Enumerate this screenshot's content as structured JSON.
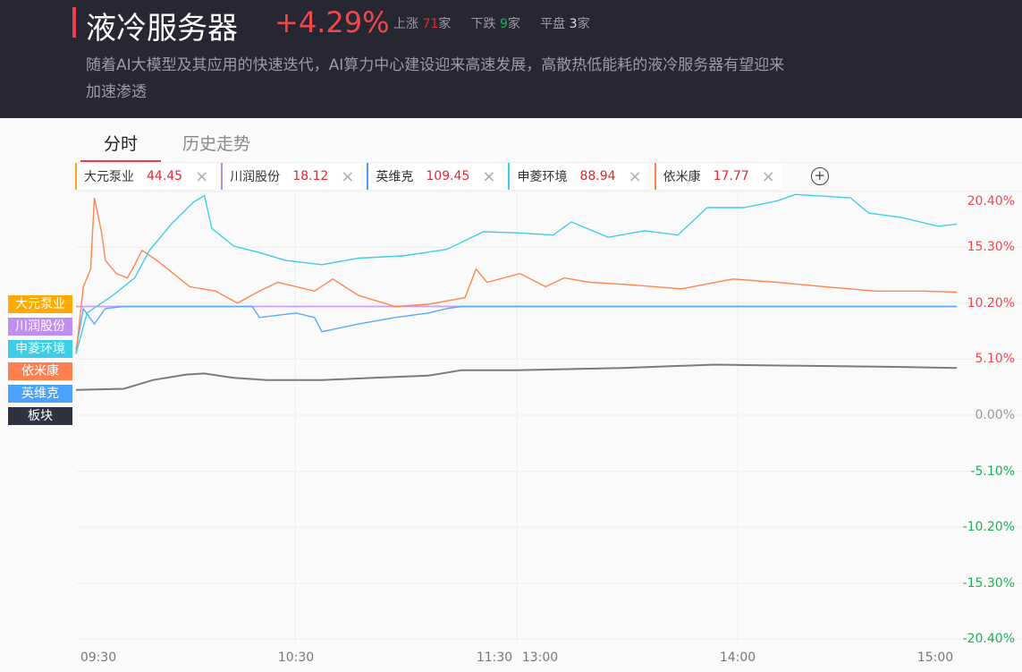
{
  "header": {
    "title": "液冷服务器",
    "change": "+4.29%",
    "up_label": "上涨",
    "up_count": "71",
    "down_label": "下跌",
    "down_count": "9",
    "flat_label": "平盘",
    "flat_count": "3",
    "unit": "家",
    "description": "随着AI大模型及其应用的快速迭代，AI算力中心建设迎来高速发展，高散热低能耗的液冷服务器有望迎来加速渗透"
  },
  "tabs": [
    {
      "label": "分时",
      "active": true
    },
    {
      "label": "历史走势",
      "active": false
    }
  ],
  "chips": [
    {
      "name": "大元泵业",
      "price": "44.45",
      "color": "#f5a623"
    },
    {
      "name": "川润股份",
      "price": "18.12",
      "color": "#b98ee6"
    },
    {
      "name": "英维克",
      "price": "109.45",
      "color": "#4b9cf5"
    },
    {
      "name": "申菱环境",
      "price": "88.94",
      "color": "#3dcde6"
    },
    {
      "name": "依米康",
      "price": "17.77",
      "color": "#ff7f4e"
    }
  ],
  "add_icon": "plus-circle-icon",
  "close_icon": "×",
  "plus_glyph": "+",
  "legend_labels": [
    {
      "label": "大元泵业",
      "color": "#ffaa00"
    },
    {
      "label": "川润股份",
      "color": "#c08ef0"
    },
    {
      "label": "申菱环境",
      "color": "#3dcde6"
    },
    {
      "label": "依米康",
      "color": "#ff7f4e"
    },
    {
      "label": "英维克",
      "color": "#4ba3ff"
    },
    {
      "label": "板块",
      "color": "#2f3340"
    }
  ],
  "chart_data": {
    "type": "line",
    "ylim": [
      -20.4,
      20.4
    ],
    "yticks": [
      "20.40%",
      "15.30%",
      "10.20%",
      "5.10%",
      "0.00%",
      "-5.10%",
      "-10.20%",
      "-15.30%",
      "-20.40%"
    ],
    "ytick_values": [
      20.4,
      15.3,
      10.2,
      5.1,
      0,
      -5.1,
      -10.2,
      -15.3,
      -20.4
    ],
    "xticks": [
      "09:30",
      "10:30",
      "11:30",
      "13:00",
      "14:00",
      "15:00"
    ],
    "grid": true,
    "series": [
      {
        "name": "大元泵业",
        "color": "#f5a623",
        "points": [
          [
            "09:30",
            9.9
          ],
          [
            "15:00",
            9.9
          ]
        ]
      },
      {
        "name": "川润股份",
        "color": "#c9a0f0",
        "points": [
          [
            "09:30",
            9.9
          ],
          [
            "15:00",
            9.9
          ]
        ]
      },
      {
        "name": "板块",
        "color": "#7a7a84",
        "points": [
          [
            "09:30",
            2.3
          ],
          [
            "09:43",
            2.4
          ],
          [
            "09:51",
            3.2
          ],
          [
            "10:00",
            3.7
          ],
          [
            "10:05",
            3.8
          ],
          [
            "10:13",
            3.4
          ],
          [
            "10:22",
            3.2
          ],
          [
            "10:37",
            3.2
          ],
          [
            "10:51",
            3.4
          ],
          [
            "11:06",
            3.6
          ],
          [
            "11:15",
            4.1
          ],
          [
            "13:00",
            4.1
          ],
          [
            "13:29",
            4.3
          ],
          [
            "13:54",
            4.6
          ],
          [
            "14:18",
            4.5
          ],
          [
            "14:43",
            4.4
          ],
          [
            "15:00",
            4.3
          ]
        ]
      },
      {
        "name": "英维克",
        "color": "#5aa8f8",
        "points": [
          [
            "09:30",
            6.0
          ],
          [
            "09:32",
            9.7
          ],
          [
            "09:35",
            8.3
          ],
          [
            "09:38",
            9.7
          ],
          [
            "09:43",
            9.9
          ],
          [
            "10:18",
            9.9
          ],
          [
            "10:20",
            8.9
          ],
          [
            "10:30",
            9.3
          ],
          [
            "10:35",
            8.9
          ],
          [
            "10:37",
            7.6
          ],
          [
            "10:47",
            8.3
          ],
          [
            "10:57",
            8.9
          ],
          [
            "11:06",
            9.3
          ],
          [
            "11:11",
            9.7
          ],
          [
            "11:15",
            9.9
          ],
          [
            "15:00",
            9.9
          ]
        ]
      },
      {
        "name": "依米康",
        "color": "#ff8550",
        "points": [
          [
            "09:30",
            5.6
          ],
          [
            "09:32",
            11.7
          ],
          [
            "09:34",
            13.3
          ],
          [
            "09:35",
            19.8
          ],
          [
            "09:37",
            16.6
          ],
          [
            "09:38",
            14.1
          ],
          [
            "09:41",
            12.9
          ],
          [
            "09:44",
            12.5
          ],
          [
            "09:46",
            13.7
          ],
          [
            "09:48",
            15.0
          ],
          [
            "09:52",
            14.1
          ],
          [
            "09:55",
            13.3
          ],
          [
            "10:01",
            11.7
          ],
          [
            "10:08",
            11.3
          ],
          [
            "10:14",
            10.2
          ],
          [
            "10:20",
            11.3
          ],
          [
            "10:25",
            12.1
          ],
          [
            "10:35",
            11.3
          ],
          [
            "10:40",
            12.4
          ],
          [
            "10:47",
            10.9
          ],
          [
            "10:57",
            9.9
          ],
          [
            "11:06",
            10.1
          ],
          [
            "11:16",
            10.7
          ],
          [
            "11:19",
            13.3
          ],
          [
            "11:22",
            12.1
          ],
          [
            "13:01",
            12.9
          ],
          [
            "13:08",
            11.7
          ],
          [
            "13:13",
            12.5
          ],
          [
            "13:20",
            12.1
          ],
          [
            "13:30",
            11.9
          ],
          [
            "13:45",
            11.5
          ],
          [
            "13:59",
            12.4
          ],
          [
            "14:11",
            12.1
          ],
          [
            "14:24",
            11.7
          ],
          [
            "14:38",
            11.3
          ],
          [
            "14:51",
            11.3
          ],
          [
            "15:00",
            11.2
          ]
        ]
      },
      {
        "name": "申菱环境",
        "color": "#42cde8",
        "points": [
          [
            "09:30",
            5.6
          ],
          [
            "09:33",
            9.3
          ],
          [
            "09:40",
            10.9
          ],
          [
            "09:46",
            12.5
          ],
          [
            "09:50",
            15.0
          ],
          [
            "09:56",
            17.4
          ],
          [
            "10:02",
            19.4
          ],
          [
            "10:05",
            20.0
          ],
          [
            "10:07",
            17.0
          ],
          [
            "10:13",
            15.4
          ],
          [
            "10:20",
            14.8
          ],
          [
            "10:27",
            14.1
          ],
          [
            "10:37",
            13.7
          ],
          [
            "10:47",
            14.3
          ],
          [
            "10:59",
            14.5
          ],
          [
            "11:11",
            15.1
          ],
          [
            "11:21",
            16.7
          ],
          [
            "13:00",
            16.6
          ],
          [
            "13:10",
            16.4
          ],
          [
            "13:15",
            17.6
          ],
          [
            "13:25",
            16.2
          ],
          [
            "13:35",
            16.8
          ],
          [
            "13:44",
            16.4
          ],
          [
            "13:52",
            18.9
          ],
          [
            "14:02",
            18.9
          ],
          [
            "14:11",
            19.5
          ],
          [
            "14:16",
            20.1
          ],
          [
            "14:31",
            19.8
          ],
          [
            "14:36",
            18.4
          ],
          [
            "14:45",
            18.0
          ],
          [
            "14:55",
            17.2
          ],
          [
            "15:00",
            17.4
          ]
        ]
      }
    ]
  }
}
